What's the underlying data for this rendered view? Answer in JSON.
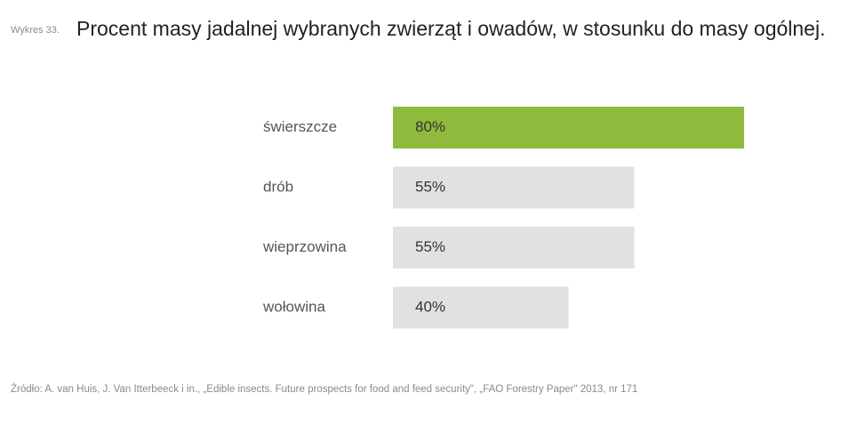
{
  "figure": {
    "label": "Wykres 33.",
    "title": "Procent masy jadalnej wybranych zwierząt i owadów, w stosunku do masy ogólnej.",
    "source": "Źródło: A. van Huis, J. Van Itterbeeck i in., „Edible insects. Future prospects for food and feed security\", „FAO Forestry Paper\" 2013, nr 171"
  },
  "chart_data": {
    "type": "bar",
    "orientation": "horizontal",
    "title": "Procent masy jadalnej wybranych zwierząt i owadów, w stosunku do masy ogólnej.",
    "categories": [
      "świerszcze",
      "drób",
      "wieprzowina",
      "wołowina"
    ],
    "values": [
      80,
      55,
      55,
      40
    ],
    "value_labels": [
      "80%",
      "55%",
      "55%",
      "40%"
    ],
    "unit": "%",
    "xlim": [
      0,
      100
    ],
    "grid": false,
    "colors": {
      "highlight": "#8fba3d",
      "default": "#e1e1e2",
      "category_text": "#555555",
      "value_text": "#333333"
    },
    "highlight_index": 0
  }
}
